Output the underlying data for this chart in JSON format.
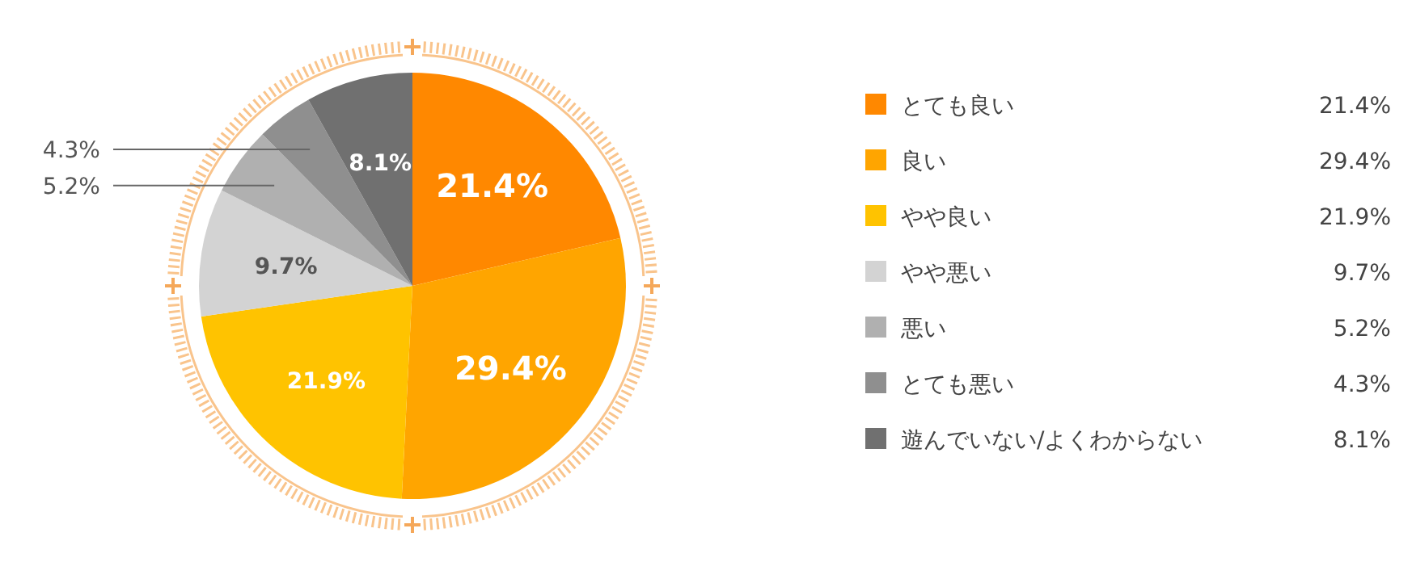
{
  "chart_data": {
    "type": "pie",
    "categories": [
      "とても良い",
      "良い",
      "やや良い",
      "やや悪い",
      "悪い",
      "とても悪い",
      "遊んでいない/よくわからない"
    ],
    "values": [
      21.4,
      29.4,
      21.9,
      9.7,
      5.2,
      4.3,
      8.1
    ],
    "colors": [
      "#ff8800",
      "#ffa500",
      "#ffc300",
      "#d3d3d3",
      "#b0b0b0",
      "#8f8f8f",
      "#707070"
    ],
    "value_labels": [
      "21.4%",
      "29.4%",
      "21.9%",
      "9.7%",
      "5.2%",
      "4.3%",
      "8.1%"
    ],
    "legend": "right"
  }
}
